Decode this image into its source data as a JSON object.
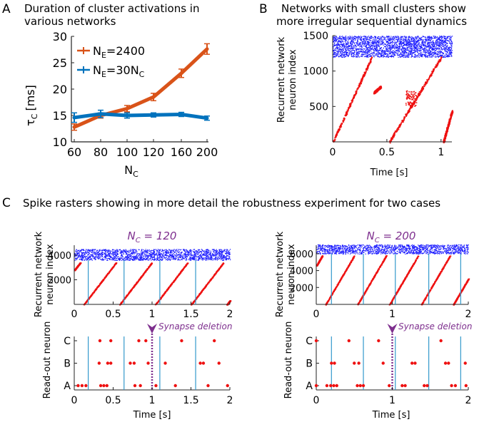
{
  "panel_letters": {
    "a": "A",
    "b": "B",
    "c": "C"
  },
  "colors": {
    "orange": "#d95319",
    "blue": "#0072bd",
    "raster_blue": "#1a1aff",
    "raster_red": "#ee1111",
    "purple": "#7e2f8e",
    "vline": "#3399cc"
  },
  "chart_data": [
    {
      "id": "A",
      "type": "line",
      "title": [
        "Duration of cluster activations in",
        "various networks"
      ],
      "xlabel": "N",
      "xlabel_sub": "C",
      "ylabel": "τ",
      "ylabel_sub": "C",
      "ylabel_unit": "[ms]",
      "categories": [
        "60",
        "80",
        "100",
        "120",
        "160",
        "200"
      ],
      "ylim": [
        10,
        30
      ],
      "yticks": [
        "10",
        "15",
        "20",
        "25",
        "30"
      ],
      "series": [
        {
          "name": "N",
          "name_sub": "E",
          "name_rest": "=2400",
          "color": "#d95319",
          "values": [
            12.8,
            15.0,
            16.3,
            18.5,
            23.0,
            27.6
          ],
          "errors": [
            0.6,
            0.5,
            0.6,
            0.7,
            0.8,
            1.0
          ]
        },
        {
          "name": "N",
          "name_sub": "E",
          "name_rest": "=30N",
          "name_sub2": "C",
          "color": "#0072bd",
          "values": [
            14.6,
            15.3,
            15.0,
            15.1,
            15.2,
            14.5
          ],
          "errors": [
            0.9,
            0.7,
            0.5,
            0.4,
            0.4,
            0.4
          ]
        }
      ],
      "legend": "top-left"
    },
    {
      "id": "B",
      "type": "scatter",
      "title": [
        "Networks with small clusters show",
        "more irregular sequential dynamics"
      ],
      "xlabel": "Time [s]",
      "ylabel": [
        "Recurrent network",
        "neuron index"
      ],
      "xlim": [
        0,
        1.1
      ],
      "ylim": [
        0,
        1500
      ],
      "xticks": [
        "0",
        "0.5",
        "1"
      ],
      "yticks": [
        "500",
        "1000",
        "1500"
      ],
      "inhibitory_band": [
        1200,
        1500
      ],
      "sequences": [
        {
          "t0": 0.0,
          "t1": 0.36,
          "n0": 0,
          "n1": 1200
        },
        {
          "t0": 0.52,
          "t1": 1.0,
          "n0": 0,
          "n1": 1200,
          "burst_t": 0.72,
          "burst_n": 620
        },
        {
          "t0": 1.02,
          "t1": 1.1,
          "n0": 0,
          "n1": 440
        },
        {
          "t0": 0.38,
          "t1": 0.44,
          "n0": 700,
          "n1": 780
        }
      ]
    },
    {
      "id": "C-left",
      "type": "scatter",
      "subtitle": "N",
      "subtitle_sub": "C",
      "subtitle_rest": " = 120",
      "xlim": [
        0,
        2
      ],
      "ylim": [
        0,
        4800
      ],
      "xticks": [
        "0",
        "0.5",
        "1",
        "1.5",
        "2"
      ],
      "yticks": [
        "2000",
        "4000"
      ],
      "ylabel": [
        "Recurrent network",
        "neuron index"
      ],
      "inhibitory_band": [
        3600,
        4500
      ],
      "event_times": [
        0.18,
        0.64,
        1.1,
        1.56
      ],
      "sequence_period": 0.46,
      "sequence_offset": 0.12,
      "readout": {
        "ylabel": "Read-out neuron",
        "xlabel": "Time [s]",
        "levels": [
          "A",
          "B",
          "C"
        ],
        "deletion_time": 1.0,
        "deletion_label": "Synapse deletion",
        "events": [
          {
            "t": 0.05,
            "l": 0
          },
          {
            "t": 0.1,
            "l": 0
          },
          {
            "t": 0.15,
            "l": 0
          },
          {
            "t": 0.34,
            "l": 0
          },
          {
            "t": 0.38,
            "l": 0
          },
          {
            "t": 0.42,
            "l": 0
          },
          {
            "t": 0.78,
            "l": 0
          },
          {
            "t": 0.85,
            "l": 0
          },
          {
            "t": 1.05,
            "l": 0
          },
          {
            "t": 1.3,
            "l": 0
          },
          {
            "t": 1.72,
            "l": 0
          },
          {
            "t": 1.97,
            "l": 0
          },
          {
            "t": 0.32,
            "l": 1
          },
          {
            "t": 0.43,
            "l": 1
          },
          {
            "t": 0.47,
            "l": 1
          },
          {
            "t": 0.72,
            "l": 1
          },
          {
            "t": 0.77,
            "l": 1
          },
          {
            "t": 0.95,
            "l": 1
          },
          {
            "t": 1.17,
            "l": 1
          },
          {
            "t": 1.62,
            "l": 1
          },
          {
            "t": 1.66,
            "l": 1
          },
          {
            "t": 1.86,
            "l": 1
          },
          {
            "t": 0.33,
            "l": 2
          },
          {
            "t": 0.47,
            "l": 2
          },
          {
            "t": 0.83,
            "l": 2
          },
          {
            "t": 0.92,
            "l": 2
          },
          {
            "t": 1.38,
            "l": 2
          },
          {
            "t": 1.8,
            "l": 2
          }
        ]
      }
    },
    {
      "id": "C-right",
      "type": "scatter",
      "subtitle": "N",
      "subtitle_sub": "C",
      "subtitle_rest": " = 200",
      "xlim": [
        0,
        2
      ],
      "ylim": [
        0,
        7000
      ],
      "xticks": [
        "0",
        "1",
        "2"
      ],
      "yticks": [
        "2000",
        "4000",
        "6000"
      ],
      "ylabel": [
        "Recurrent network",
        "neuron index"
      ],
      "inhibitory_band": [
        6000,
        7100
      ],
      "event_times": [
        0.2,
        0.62,
        1.04,
        1.48,
        1.9
      ],
      "sequence_period": 0.42,
      "sequence_offset": 0.12,
      "readout": {
        "ylabel": "Read-out neuron",
        "xlabel": "Time [s]",
        "levels": [
          "A",
          "B",
          "C"
        ],
        "deletion_time": 1.0,
        "deletion_label": "Synapse deletion",
        "events": [
          {
            "t": 0.0,
            "l": 0
          },
          {
            "t": 0.14,
            "l": 0
          },
          {
            "t": 0.19,
            "l": 0
          },
          {
            "t": 0.23,
            "l": 0
          },
          {
            "t": 0.27,
            "l": 0
          },
          {
            "t": 0.54,
            "l": 0
          },
          {
            "t": 0.58,
            "l": 0
          },
          {
            "t": 0.62,
            "l": 0
          },
          {
            "t": 0.96,
            "l": 0
          },
          {
            "t": 1.13,
            "l": 0
          },
          {
            "t": 1.17,
            "l": 0
          },
          {
            "t": 1.42,
            "l": 0
          },
          {
            "t": 1.46,
            "l": 0
          },
          {
            "t": 1.78,
            "l": 0
          },
          {
            "t": 1.83,
            "l": 0
          },
          {
            "t": 1.97,
            "l": 0
          },
          {
            "t": 0.2,
            "l": 1
          },
          {
            "t": 0.24,
            "l": 1
          },
          {
            "t": 0.5,
            "l": 1
          },
          {
            "t": 0.56,
            "l": 1
          },
          {
            "t": 0.88,
            "l": 1
          },
          {
            "t": 1.26,
            "l": 1
          },
          {
            "t": 1.3,
            "l": 1
          },
          {
            "t": 1.7,
            "l": 1
          },
          {
            "t": 1.74,
            "l": 1
          },
          {
            "t": 1.96,
            "l": 1
          },
          {
            "t": 0.0,
            "l": 2
          },
          {
            "t": 0.43,
            "l": 2
          },
          {
            "t": 0.82,
            "l": 2
          },
          {
            "t": 1.64,
            "l": 2
          }
        ]
      }
    }
  ],
  "panel_c_title": "Spike rasters showing in more detail the robustness experiment for two cases"
}
